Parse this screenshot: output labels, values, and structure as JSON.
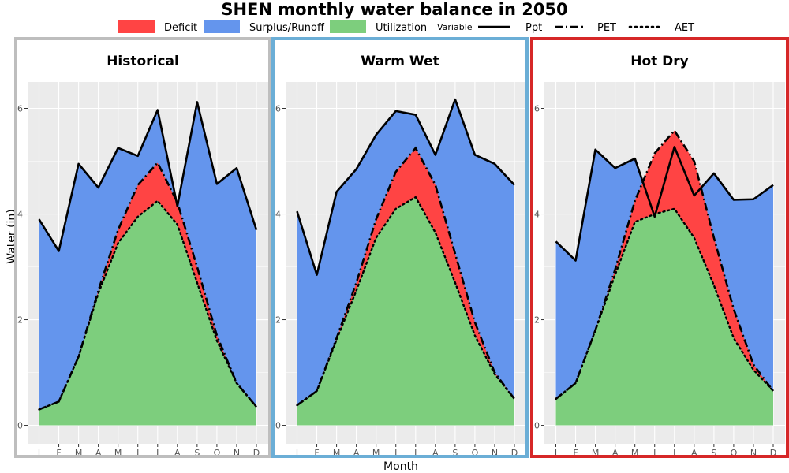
{
  "title": "SHEN monthly water balance in 2050",
  "legend": {
    "fill_items": [
      {
        "label": "Deficit",
        "color": "#ff4444"
      },
      {
        "label": "Surplus/Runoff",
        "color": "#6495ed"
      },
      {
        "label": "Utilization",
        "color": "#7dce7d"
      }
    ],
    "line_title": "Variable",
    "line_items": [
      {
        "label": "Ppt",
        "style": "solid"
      },
      {
        "label": "PET",
        "style": "dashdot"
      },
      {
        "label": "AET",
        "style": "dotted"
      }
    ]
  },
  "chart_data": {
    "type": "area",
    "xlabel": "Month",
    "ylabel": "Water (in)",
    "ylim": [
      -0.35,
      6.5
    ],
    "yticks": [
      0,
      2,
      4,
      6
    ],
    "categories": [
      "J",
      "F",
      "M",
      "A",
      "M",
      "J",
      "J",
      "A",
      "S",
      "O",
      "N",
      "D"
    ],
    "colors": {
      "deficit": "#ff4444",
      "surplus": "#6495ed",
      "utilization": "#7dce7d"
    },
    "panels": [
      {
        "title": "Historical",
        "border_color": "#bebebe",
        "series": [
          {
            "name": "Ppt",
            "values": [
              3.9,
              3.3,
              4.95,
              4.5,
              5.25,
              5.1,
              5.97,
              4.15,
              6.12,
              4.57,
              4.87,
              3.7
            ]
          },
          {
            "name": "PET",
            "values": [
              0.3,
              0.45,
              1.3,
              2.55,
              3.7,
              4.55,
              4.97,
              4.22,
              3.0,
              1.7,
              0.8,
              0.35
            ]
          },
          {
            "name": "AET",
            "values": [
              0.3,
              0.45,
              1.3,
              2.5,
              3.45,
              3.95,
              4.25,
              3.8,
              2.7,
              1.6,
              0.8,
              0.35
            ]
          }
        ]
      },
      {
        "title": "Warm Wet",
        "border_color": "#6baed6",
        "series": [
          {
            "name": "Ppt",
            "values": [
              4.05,
              2.85,
              4.42,
              4.85,
              5.5,
              5.95,
              5.88,
              5.12,
              6.17,
              5.12,
              4.95,
              4.55
            ]
          },
          {
            "name": "PET",
            "values": [
              0.38,
              0.65,
              1.65,
              2.7,
              3.9,
              4.8,
              5.25,
              4.55,
              3.25,
              1.95,
              1.0,
              0.5
            ]
          },
          {
            "name": "AET",
            "values": [
              0.38,
              0.65,
              1.62,
              2.55,
              3.55,
              4.1,
              4.32,
              3.65,
              2.7,
              1.7,
              0.97,
              0.5
            ]
          }
        ]
      },
      {
        "title": "Hot Dry",
        "border_color": "#d62728",
        "series": [
          {
            "name": "Ppt",
            "values": [
              3.48,
              3.12,
              5.22,
              4.87,
              5.05,
              3.95,
              5.27,
              4.35,
              4.77,
              4.27,
              4.28,
              4.55
            ]
          },
          {
            "name": "PET",
            "values": [
              0.5,
              0.8,
              1.8,
              2.95,
              4.25,
              5.15,
              5.58,
              5.0,
              3.55,
              2.2,
              1.15,
              0.65
            ]
          },
          {
            "name": "AET",
            "values": [
              0.5,
              0.8,
              1.8,
              2.85,
              3.85,
              4.0,
              4.1,
              3.55,
              2.65,
              1.65,
              1.05,
              0.65
            ]
          }
        ]
      }
    ]
  }
}
